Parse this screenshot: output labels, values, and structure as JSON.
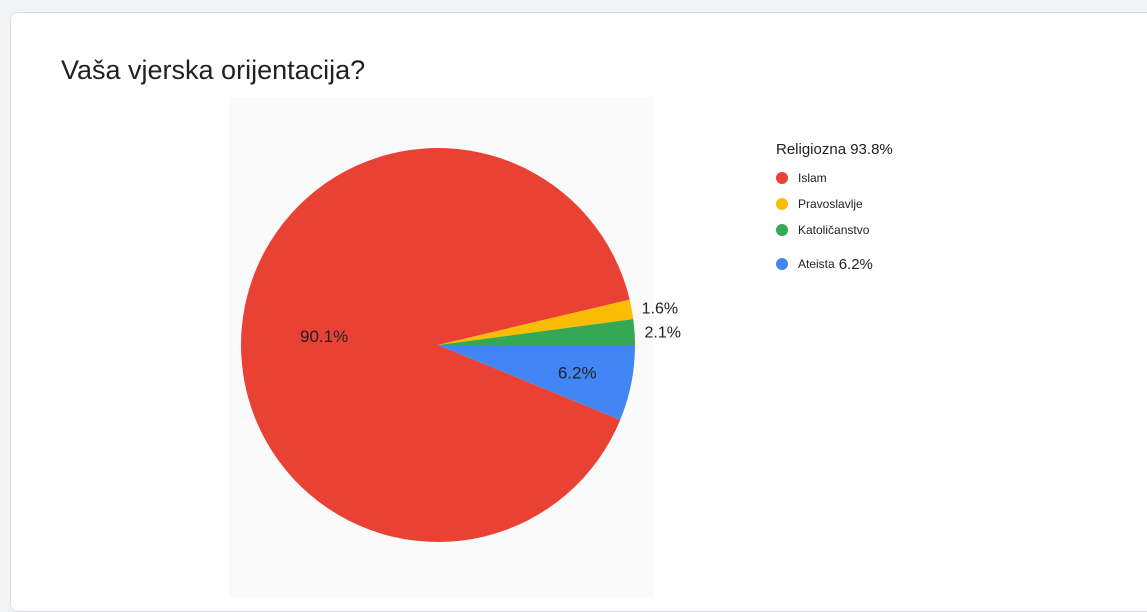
{
  "card": {
    "title": "Vaša vjerska orijentacija?"
  },
  "chart_data": {
    "type": "pie",
    "title": "Vaša vjerska orijentacija?",
    "slices": [
      {
        "label": "Islam",
        "value": 90.1,
        "display": "90.1%",
        "color": "#e94235"
      },
      {
        "label": "Pravoslavlje",
        "value": 1.6,
        "display": "1.6%",
        "color": "#fbbc04"
      },
      {
        "label": "Katoličanstvo",
        "value": 2.1,
        "display": "2.1%",
        "color": "#34a853"
      },
      {
        "label": "Ateista",
        "value": 6.2,
        "display": "6.2%",
        "color": "#4285f4"
      }
    ],
    "legend": {
      "placement": "right",
      "groups": [
        {
          "label": "Religiozna",
          "value": "93.8%",
          "items": [
            "Islam",
            "Pravoslavlje",
            "Katoličanstvo"
          ]
        },
        {
          "label": "Ateista",
          "value": "6.2%",
          "items": [
            "Ateista"
          ]
        }
      ]
    }
  }
}
